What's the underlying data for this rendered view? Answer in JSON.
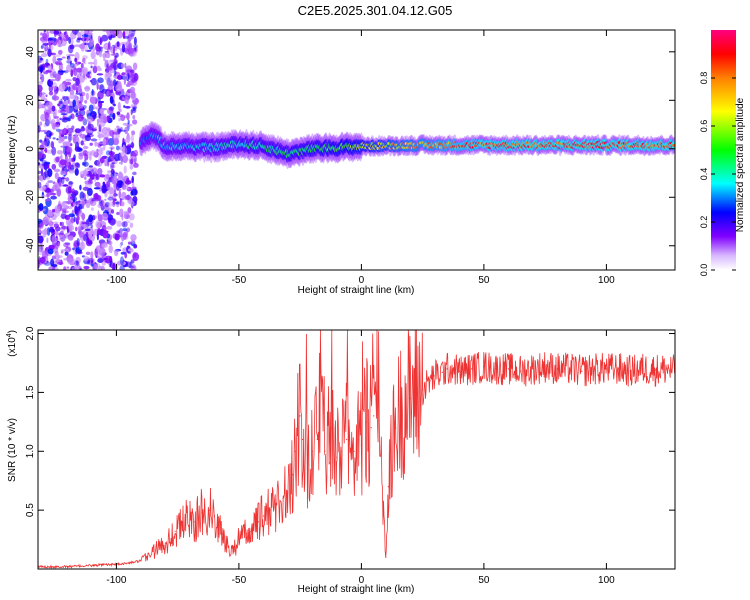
{
  "figure_title": "C2E5.2025.301.04.12.G05",
  "chart_data": [
    {
      "type": "heatmap",
      "xlabel": "Height of straight line (km)",
      "ylabel": "Frequency (Hz)",
      "xlim": [
        -132,
        128
      ],
      "ylim": [
        -50,
        49
      ],
      "x_ticks": [
        -100,
        -50,
        0,
        50,
        100
      ],
      "y_ticks": [
        -40,
        -20,
        0,
        20,
        40
      ],
      "x_tick_labels": [
        "-100",
        "-50",
        "0",
        "50",
        "100"
      ],
      "y_tick_labels": [
        "-40",
        "-20",
        "0",
        "20",
        "40"
      ],
      "colorbar": {
        "label": "Normalized spectral amplitude",
        "range": [
          0,
          1
        ],
        "ticks": [
          0.0,
          0.2,
          0.4,
          0.6,
          0.8
        ],
        "tick_labels": [
          "0.0",
          "0.2",
          "0.4",
          "0.6",
          "0.8"
        ],
        "colors": [
          "#ffffff",
          "#8000ff",
          "#0000ff",
          "#00ffff",
          "#00ff00",
          "#ffff00",
          "#ff8000",
          "#ff0000",
          "#ff0080"
        ]
      },
      "features": {
        "noise_region_x": [
          -132,
          -92
        ],
        "carrier_onset_x": -90,
        "carrier_freq_hz": [
          [
            -90,
            3
          ],
          [
            -85,
            6
          ],
          [
            -80,
            1
          ],
          [
            -70,
            1
          ],
          [
            -60,
            0.5
          ],
          [
            -50,
            2
          ],
          [
            -40,
            1
          ],
          [
            -30,
            -2
          ],
          [
            -20,
            0
          ],
          [
            -10,
            0.5
          ],
          [
            0,
            1
          ],
          [
            25,
            1.5
          ],
          [
            50,
            1.5
          ],
          [
            75,
            1.5
          ],
          [
            100,
            1.5
          ],
          [
            128,
            1.5
          ]
        ],
        "peak_amplitude_x": [
          [
            -90,
            0.35
          ],
          [
            -60,
            0.45
          ],
          [
            -40,
            0.5
          ],
          [
            -20,
            0.55
          ],
          [
            0,
            0.65
          ],
          [
            20,
            0.8
          ],
          [
            40,
            0.9
          ],
          [
            60,
            0.95
          ],
          [
            128,
            0.95
          ]
        ]
      }
    },
    {
      "type": "line",
      "xlabel": "Height of straight line (km)",
      "ylabel": "SNR (10 * v/v)",
      "y_multiplier": "(x10",
      "y_multiplier_exp": "4",
      "y_multiplier_close": ")",
      "xlim": [
        -132,
        128
      ],
      "ylim": [
        0,
        2.03
      ],
      "x_ticks": [
        -100,
        -50,
        0,
        50,
        100
      ],
      "y_ticks": [
        0.5,
        1.0,
        1.5,
        2.0
      ],
      "x_tick_labels": [
        "-100",
        "-50",
        "0",
        "50",
        "100"
      ],
      "y_tick_labels": [
        "0.5",
        "1.0",
        "1.5",
        "2.0"
      ],
      "line_color": "#ee3333",
      "series": [
        {
          "x": [
            -132,
            -120,
            -110,
            -100,
            -95,
            -90,
            -88,
            -85,
            -80,
            -76,
            -72,
            -70,
            -68,
            -65,
            -62,
            -60,
            -57,
            -55,
            -52,
            -50,
            -47,
            -45,
            -42,
            -40,
            -37,
            -35,
            -32,
            -30,
            -28,
            -27,
            -26,
            -25,
            -24,
            -22,
            -20,
            -18,
            -17,
            -15,
            -13,
            -12,
            -10,
            -8,
            -6,
            -5,
            -3,
            -1,
            0,
            2,
            4,
            5,
            6,
            7,
            8,
            9,
            10,
            11,
            12,
            14,
            16,
            18,
            20,
            22,
            25,
            28,
            30,
            33,
            35,
            38,
            40,
            45,
            50,
            55,
            60,
            65,
            70,
            75,
            80,
            85,
            90,
            95,
            100,
            105,
            110,
            115,
            120,
            125,
            128
          ],
          "y": [
            0.02,
            0.02,
            0.03,
            0.04,
            0.05,
            0.07,
            0.1,
            0.15,
            0.22,
            0.32,
            0.4,
            0.45,
            0.4,
            0.48,
            0.5,
            0.45,
            0.3,
            0.2,
            0.18,
            0.25,
            0.3,
            0.32,
            0.4,
            0.45,
            0.5,
            0.55,
            0.6,
            0.65,
            0.8,
            1.0,
            1.2,
            1.3,
            1.1,
            0.9,
            1.0,
            1.1,
            1.3,
            1.0,
            0.9,
            1.2,
            0.95,
            1.0,
            1.1,
            1.2,
            1.0,
            1.1,
            1.05,
            1.25,
            1.2,
            1.3,
            1.5,
            1.6,
            1.0,
            0.5,
            0.1,
            0.7,
            1.0,
            1.2,
            1.35,
            1.4,
            1.45,
            1.5,
            1.52,
            1.6,
            1.64,
            1.67,
            1.7,
            1.7,
            1.68,
            1.7,
            1.72,
            1.7,
            1.7,
            1.68,
            1.7,
            1.72,
            1.7,
            1.7,
            1.68,
            1.7,
            1.7,
            1.7,
            1.68,
            1.7,
            1.69,
            1.7,
            1.68
          ]
        }
      ]
    }
  ]
}
